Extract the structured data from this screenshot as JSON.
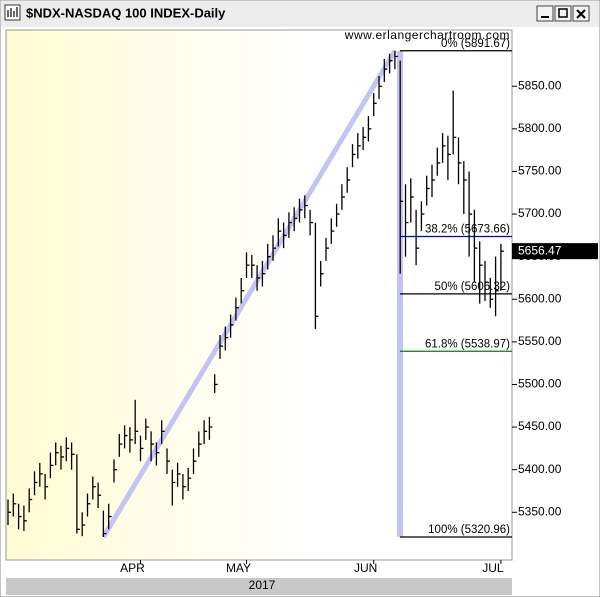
{
  "chart_data": {
    "type": "ohlc",
    "title": "$NDX-NASDAQ 100 INDEX-Daily",
    "watermark": "www.erlangerchartroom.com",
    "year_label": "2017",
    "color": "#000000",
    "ylim": [
      5294,
      5916
    ],
    "yticks": [
      {
        "value": 5350,
        "label": "5350.00"
      },
      {
        "value": 5400,
        "label": "5400.00"
      },
      {
        "value": 5450,
        "label": "5450.00"
      },
      {
        "value": 5500,
        "label": "5500.00"
      },
      {
        "value": 5550,
        "label": "5550.00"
      },
      {
        "value": 5600,
        "label": "5600.00"
      },
      {
        "value": 5650,
        "label": "5650.00"
      },
      {
        "value": 5700,
        "label": "5700.00"
      },
      {
        "value": 5750,
        "label": "5750.00"
      },
      {
        "value": 5800,
        "label": "5800.00"
      },
      {
        "value": 5850,
        "label": "5850.00"
      }
    ],
    "last_price": 5656.47,
    "fib_levels": [
      {
        "label": "0% (5891.67)",
        "value": 5891.67,
        "color": "#000000"
      },
      {
        "label": "38.2% (5673.66)",
        "value": 5673.66,
        "color": "#0000cc"
      },
      {
        "label": "50% (5606.32)",
        "value": 5606.32,
        "color": "#000000"
      },
      {
        "label": "61.8% (5538.97)",
        "value": 5538.97,
        "color": "#008000"
      },
      {
        "label": "100% (5320.96)",
        "value": 5320.96,
        "color": "#000000"
      }
    ],
    "categories": [
      null,
      null,
      null,
      null,
      null,
      null,
      null,
      null,
      null,
      null,
      null,
      null,
      null,
      null,
      null,
      null,
      null,
      null,
      null,
      null,
      null,
      null,
      null,
      null,
      null,
      "APR",
      null,
      null,
      null,
      null,
      null,
      null,
      null,
      null,
      null,
      null,
      null,
      null,
      null,
      null,
      null,
      null,
      null,
      null,
      null,
      "MAY",
      null,
      null,
      null,
      null,
      null,
      null,
      null,
      null,
      null,
      null,
      null,
      null,
      null,
      null,
      null,
      null,
      null,
      null,
      null,
      null,
      null,
      null,
      null,
      "JUN",
      null,
      null,
      null,
      null,
      null,
      null,
      null,
      null,
      null,
      null,
      null,
      null,
      null,
      null,
      null,
      null,
      null,
      null,
      null,
      null,
      null,
      null,
      null,
      "JUL"
    ],
    "high": [
      5365,
      5372,
      5360,
      5358,
      5378,
      5398,
      5408,
      5395,
      5420,
      5432,
      5428,
      5438,
      5432,
      5418,
      5350,
      5372,
      5392,
      5385,
      5352,
      5360,
      5412,
      5442,
      5452,
      5450,
      5482,
      5440,
      5460,
      5445,
      5432,
      5458,
      5425,
      5400,
      5408,
      5395,
      5402,
      5425,
      5445,
      5458,
      5462,
      5512,
      5558,
      5568,
      5582,
      5602,
      5625,
      5655,
      5652,
      5640,
      5645,
      5665,
      5675,
      5695,
      5690,
      5702,
      5708,
      5718,
      5722,
      5705,
      5690,
      5645,
      5672,
      5695,
      5712,
      5735,
      5755,
      5782,
      5795,
      5802,
      5815,
      5842,
      5862,
      5882,
      5888,
      5891.67,
      5880,
      5735,
      5742,
      5705,
      5715,
      5745,
      5758,
      5778,
      5795,
      5792,
      5845,
      5790,
      5762,
      5750,
      5705,
      5668,
      5645,
      5625,
      5650,
      5665
    ],
    "low": [
      5335,
      5345,
      5330,
      5328,
      5350,
      5370,
      5380,
      5365,
      5390,
      5405,
      5400,
      5410,
      5400,
      5325,
      5322,
      5345,
      5365,
      5355,
      5320.96,
      5330,
      5385,
      5415,
      5425,
      5420,
      5430,
      5410,
      5435,
      5410,
      5405,
      5430,
      5395,
      5358,
      5380,
      5365,
      5375,
      5395,
      5415,
      5430,
      5435,
      5490,
      5530,
      5540,
      5555,
      5575,
      5595,
      5625,
      5625,
      5610,
      5615,
      5635,
      5645,
      5662,
      5660,
      5672,
      5680,
      5690,
      5695,
      5675,
      5565,
      5615,
      5645,
      5665,
      5685,
      5705,
      5725,
      5755,
      5765,
      5775,
      5785,
      5815,
      5835,
      5855,
      5865,
      5870,
      5630,
      5650,
      5690,
      5640,
      5680,
      5710,
      5720,
      5745,
      5760,
      5740,
      5770,
      5735,
      5700,
      5650,
      5620,
      5595,
      5598,
      5590,
      5580,
      5610
    ],
    "close": [
      5350,
      5360,
      5345,
      5340,
      5365,
      5385,
      5395,
      5380,
      5405,
      5420,
      5415,
      5425,
      5418,
      5330,
      5335,
      5360,
      5380,
      5370,
      5325,
      5345,
      5400,
      5430,
      5440,
      5435,
      5445,
      5425,
      5450,
      5430,
      5420,
      5445,
      5410,
      5385,
      5395,
      5380,
      5390,
      5410,
      5430,
      5445,
      5450,
      5500,
      5545,
      5555,
      5570,
      5590,
      5610,
      5640,
      5640,
      5625,
      5630,
      5650,
      5660,
      5680,
      5675,
      5690,
      5695,
      5705,
      5710,
      5690,
      5580,
      5630,
      5660,
      5680,
      5700,
      5720,
      5740,
      5770,
      5780,
      5790,
      5800,
      5830,
      5850,
      5870,
      5880,
      5885,
      5715,
      5690,
      5720,
      5660,
      5700,
      5730,
      5740,
      5760,
      5780,
      5770,
      5790,
      5760,
      5740,
      5700,
      5660,
      5640,
      5620,
      5600,
      5610,
      5656.47
    ]
  }
}
